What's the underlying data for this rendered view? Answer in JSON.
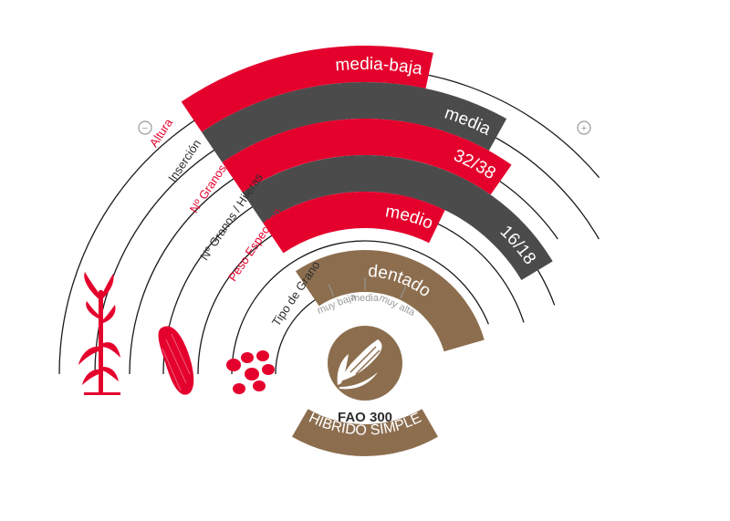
{
  "colors": {
    "red": "#e4022d",
    "dark": "#4b4b4b",
    "brown": "#8c6e4f",
    "line": "#1a1a1a",
    "muted": "#9a9a9a"
  },
  "scale": {
    "min_symbol": "−",
    "max_symbol": "+",
    "ticks": [
      "muy baja",
      "media",
      "muy alta"
    ]
  },
  "rows": [
    {
      "label": "Altura",
      "value": "media-baja",
      "color": "red"
    },
    {
      "label": "Inserción",
      "value": "media",
      "color": "dark"
    },
    {
      "label": "Nº Granos",
      "value": "32/38",
      "color": "red"
    },
    {
      "label": "Nº Granos / Hileras",
      "value": "16/18",
      "color": "dark"
    },
    {
      "label": "Peso Específico",
      "value": "medio",
      "color": "red"
    },
    {
      "label": "Tipo de Grano",
      "value": "dentado",
      "color": "brown"
    }
  ],
  "illustrations": [
    "corn-plant-icon",
    "corn-cob-icon",
    "kernels-icon",
    "corn-badge-icon"
  ],
  "fao_label": "FAO 300",
  "hybrid_label": "HÍBRIDO SIMPLE"
}
